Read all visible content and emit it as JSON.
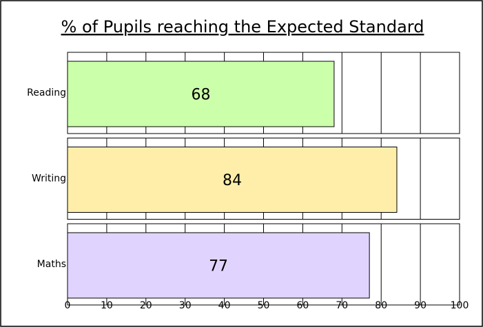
{
  "chart_data": {
    "type": "bar",
    "orientation": "horizontal",
    "title": "% of Pupils reaching the Expected Standard",
    "categories": [
      "Reading",
      "Writing",
      "Maths"
    ],
    "values": [
      68,
      84,
      77
    ],
    "colors": [
      "#ccffaa",
      "#ffeeaa",
      "#e0d4ff"
    ],
    "xlim": [
      0,
      100
    ],
    "xticks": [
      0,
      10,
      20,
      30,
      40,
      50,
      60,
      70,
      80,
      90,
      100
    ],
    "grid": true
  }
}
